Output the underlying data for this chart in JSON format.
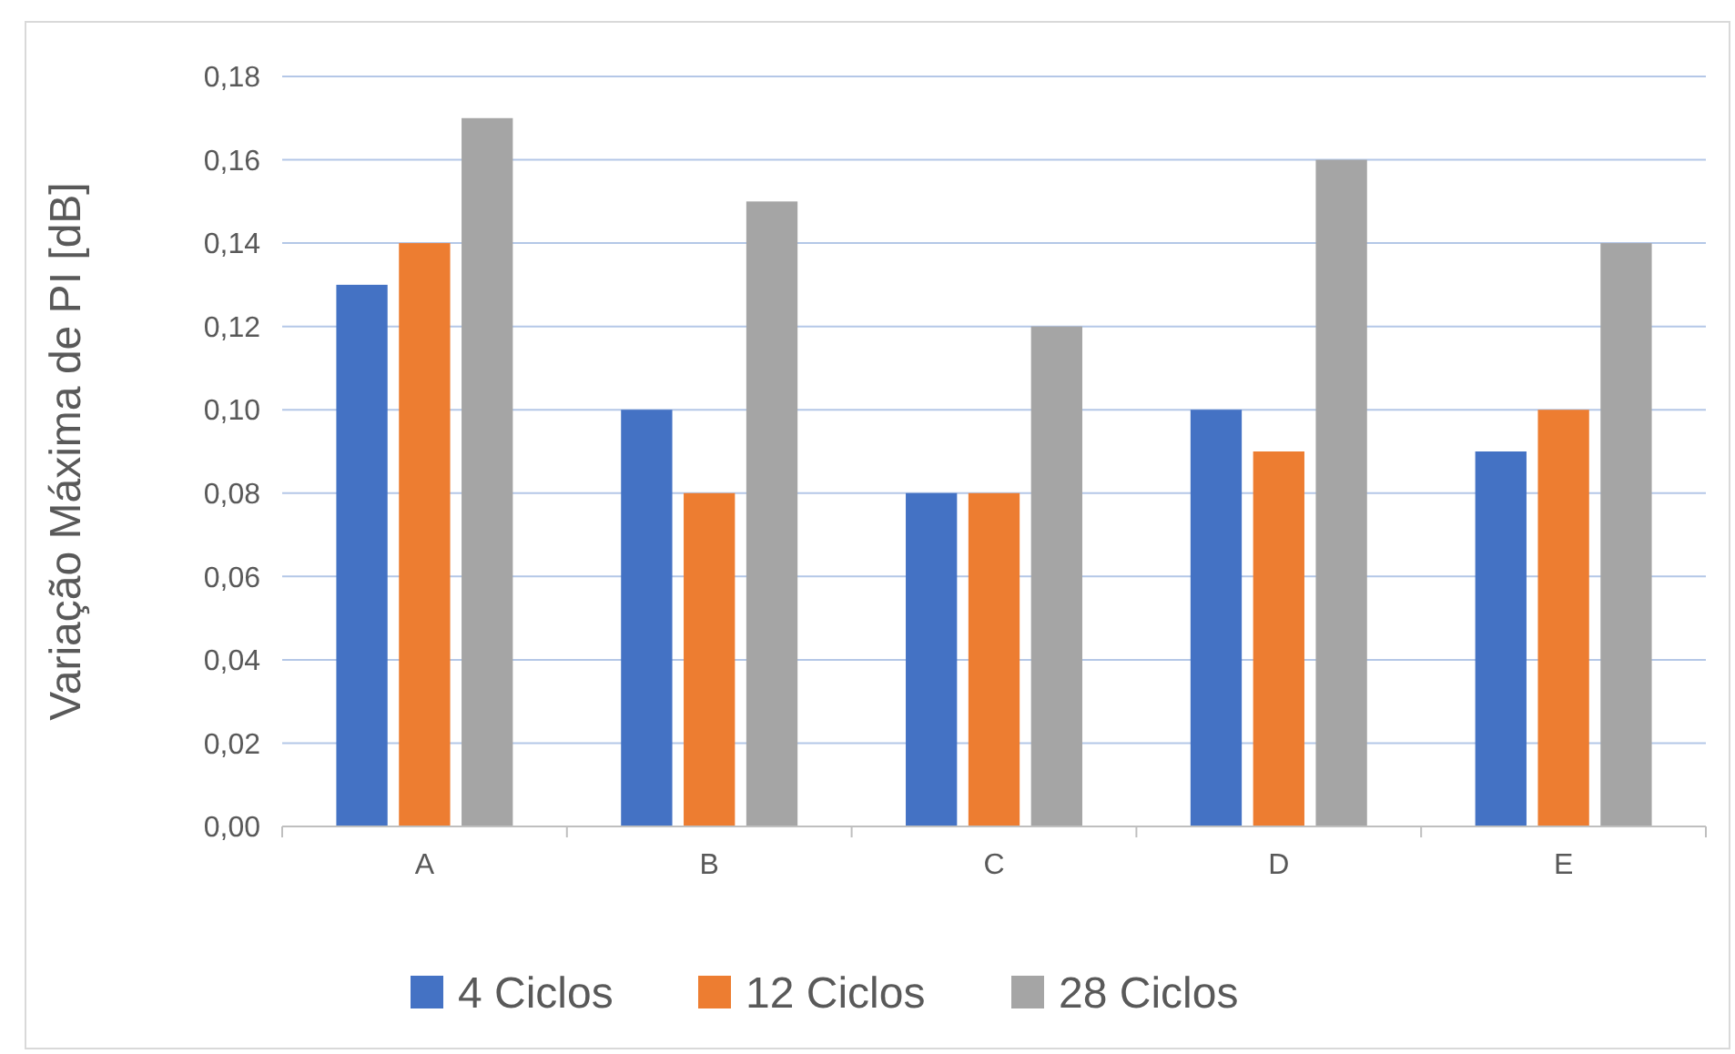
{
  "chart_data": {
    "type": "bar",
    "ylabel": "Variação Máxima de PI [dB]",
    "categories": [
      "A",
      "B",
      "C",
      "D",
      "E"
    ],
    "series": [
      {
        "name": "4 Ciclos",
        "color": "#4472c4",
        "values": [
          0.13,
          0.1,
          0.08,
          0.1,
          0.09
        ]
      },
      {
        "name": "12 Ciclos",
        "color": "#ed7d31",
        "values": [
          0.14,
          0.08,
          0.08,
          0.09,
          0.1
        ]
      },
      {
        "name": "28 Ciclos",
        "color": "#a5a5a5",
        "values": [
          0.17,
          0.15,
          0.12,
          0.16,
          0.14
        ]
      }
    ],
    "ylim": [
      0,
      0.18
    ],
    "yticks": [
      {
        "value": 0,
        "label": "0,00"
      },
      {
        "value": 0.02,
        "label": "0,02"
      },
      {
        "value": 0.04,
        "label": "0,04"
      },
      {
        "value": 0.06,
        "label": "0,06"
      },
      {
        "value": 0.08,
        "label": "0,08"
      },
      {
        "value": 0.1,
        "label": "0,10"
      },
      {
        "value": 0.12,
        "label": "0,12"
      },
      {
        "value": 0.14,
        "label": "0,14"
      },
      {
        "value": 0.16,
        "label": "0,16"
      },
      {
        "value": 0.18,
        "label": "0,18"
      }
    ],
    "grid": "y",
    "legend": "bottom"
  }
}
